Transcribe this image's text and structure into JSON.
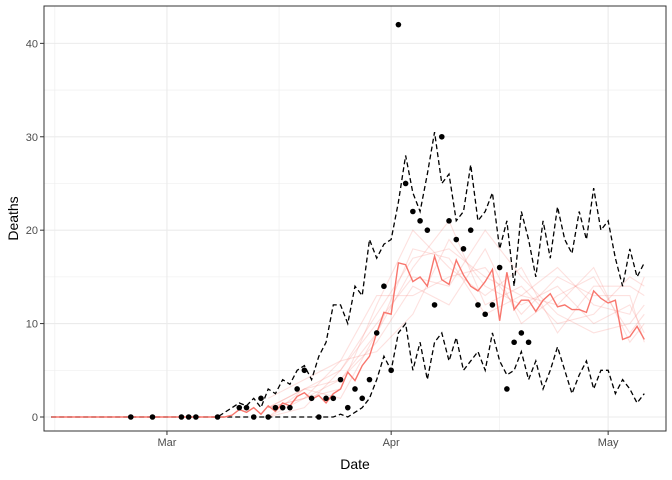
{
  "chart_data": {
    "type": "line",
    "title": "",
    "xlabel": "Date",
    "ylabel": "Deaths",
    "x_axis": {
      "type": "date",
      "range": [
        "2020-02-13",
        "2020-05-09"
      ],
      "tick_dates": [
        "2020-03-01",
        "2020-04-01",
        "2020-05-01"
      ],
      "tick_labels": [
        "Mar",
        "Apr",
        "May"
      ]
    },
    "y_axis": {
      "range": [
        -1.5,
        44
      ],
      "ticks": [
        0,
        10,
        20,
        30,
        40
      ],
      "tick_labels": [
        "0",
        "10",
        "20",
        "30",
        "40"
      ]
    },
    "grid": true,
    "legend": "none",
    "colors": {
      "observed_points": "#000000",
      "median_line": "#f8766d",
      "simulation_lines": "#f8766d",
      "interval_lines": "#000000",
      "grid": "#ebebeb",
      "panel_border": "#333333"
    },
    "observed": {
      "x": [
        "2020-02-25",
        "2020-02-28",
        "2020-03-03",
        "2020-03-04",
        "2020-03-05",
        "2020-03-08",
        "2020-03-11",
        "2020-03-12",
        "2020-03-13",
        "2020-03-14",
        "2020-03-15",
        "2020-03-16",
        "2020-03-17",
        "2020-03-18",
        "2020-03-19",
        "2020-03-20",
        "2020-03-21",
        "2020-03-22",
        "2020-03-23",
        "2020-03-24",
        "2020-03-25",
        "2020-03-26",
        "2020-03-27",
        "2020-03-28",
        "2020-03-29",
        "2020-03-30",
        "2020-03-31",
        "2020-04-01",
        "2020-04-02",
        "2020-04-03",
        "2020-04-04",
        "2020-04-05",
        "2020-04-06",
        "2020-04-07",
        "2020-04-08",
        "2020-04-09",
        "2020-04-10",
        "2020-04-11",
        "2020-04-12",
        "2020-04-13",
        "2020-04-14",
        "2020-04-15",
        "2020-04-16",
        "2020-04-17",
        "2020-04-18",
        "2020-04-19",
        "2020-04-20",
        "2020-04-21",
        "2020-04-22"
      ],
      "y": [
        0,
        0,
        0,
        0,
        0,
        0,
        1,
        1,
        0,
        2,
        0,
        1,
        1,
        1,
        3,
        5,
        2,
        0,
        2,
        2,
        4,
        1,
        3,
        2,
        4,
        9,
        14,
        5,
        42,
        25,
        22,
        21,
        20,
        12,
        30,
        21,
        19,
        18,
        20,
        12,
        11,
        12,
        16,
        3,
        8,
        9,
        8,
        null,
        null
      ]
    },
    "median": {
      "x": [
        "2020-02-14",
        "2020-02-20",
        "2020-02-26",
        "2020-03-02",
        "2020-03-06",
        "2020-03-09",
        "2020-03-10",
        "2020-03-11",
        "2020-03-12",
        "2020-03-13",
        "2020-03-14",
        "2020-03-15",
        "2020-03-16",
        "2020-03-17",
        "2020-03-18",
        "2020-03-19",
        "2020-03-20",
        "2020-03-21",
        "2020-03-22",
        "2020-03-23",
        "2020-03-24",
        "2020-03-25",
        "2020-03-26",
        "2020-03-27",
        "2020-03-28",
        "2020-03-29",
        "2020-03-30",
        "2020-03-31",
        "2020-04-01",
        "2020-04-02",
        "2020-04-03",
        "2020-04-04",
        "2020-04-05",
        "2020-04-06",
        "2020-04-07",
        "2020-04-08",
        "2020-04-09",
        "2020-04-10",
        "2020-04-11",
        "2020-04-12",
        "2020-04-13",
        "2020-04-14",
        "2020-04-15",
        "2020-04-16",
        "2020-04-17",
        "2020-04-18",
        "2020-04-19",
        "2020-04-20",
        "2020-04-21",
        "2020-04-22",
        "2020-04-23",
        "2020-04-24",
        "2020-04-25",
        "2020-04-26",
        "2020-04-27",
        "2020-04-28",
        "2020-04-29",
        "2020-04-30",
        "2020-05-01",
        "2020-05-02",
        "2020-05-03",
        "2020-05-04",
        "2020-05-05",
        "2020-05-06"
      ],
      "y": [
        0,
        0,
        0,
        0,
        0,
        0,
        0.2,
        0.8,
        0.5,
        1.0,
        0.3,
        1.2,
        0.6,
        1.5,
        1.2,
        2.2,
        2.6,
        1.9,
        2.3,
        1.5,
        2.5,
        3.0,
        4.8,
        3.9,
        5.5,
        6.5,
        9.0,
        11.2,
        11.0,
        16.5,
        16.3,
        14.5,
        15.0,
        14.0,
        17.2,
        14.7,
        14.2,
        16.8,
        15.2,
        14.0,
        13.5,
        14.5,
        15.8,
        10.3,
        15.5,
        11.5,
        12.5,
        12.5,
        11.3,
        12.5,
        13.2,
        11.8,
        12.0,
        11.5,
        11.5,
        11.2,
        13.5,
        12.7,
        12.2,
        12.5,
        8.3,
        8.6,
        9.7,
        8.3
      ]
    },
    "upper_interval": {
      "x": [
        "2020-02-14",
        "2020-03-07",
        "2020-03-08",
        "2020-03-09",
        "2020-03-10",
        "2020-03-11",
        "2020-03-12",
        "2020-03-13",
        "2020-03-14",
        "2020-03-15",
        "2020-03-16",
        "2020-03-17",
        "2020-03-18",
        "2020-03-19",
        "2020-03-20",
        "2020-03-21",
        "2020-03-22",
        "2020-03-23",
        "2020-03-24",
        "2020-03-25",
        "2020-03-26",
        "2020-03-27",
        "2020-03-28",
        "2020-03-29",
        "2020-03-30",
        "2020-03-31",
        "2020-04-01",
        "2020-04-02",
        "2020-04-03",
        "2020-04-04",
        "2020-04-05",
        "2020-04-06",
        "2020-04-07",
        "2020-04-08",
        "2020-04-09",
        "2020-04-10",
        "2020-04-11",
        "2020-04-12",
        "2020-04-13",
        "2020-04-14",
        "2020-04-15",
        "2020-04-16",
        "2020-04-17",
        "2020-04-18",
        "2020-04-19",
        "2020-04-20",
        "2020-04-21",
        "2020-04-22",
        "2020-04-23",
        "2020-04-24",
        "2020-04-25",
        "2020-04-26",
        "2020-04-27",
        "2020-04-28",
        "2020-04-29",
        "2020-04-30",
        "2020-05-01",
        "2020-05-02",
        "2020-05-03",
        "2020-05-04",
        "2020-05-05",
        "2020-05-06"
      ],
      "y": [
        0,
        0,
        0,
        0.5,
        1.0,
        1.5,
        1.2,
        2.0,
        1.0,
        3.0,
        2.5,
        4.0,
        3.5,
        5.0,
        5.5,
        4.0,
        6.5,
        8.0,
        12.0,
        12.0,
        10.0,
        14.0,
        13.0,
        19.0,
        17.0,
        18.5,
        19.0,
        23.0,
        28.0,
        24.0,
        22.0,
        26.0,
        30.5,
        25.0,
        26.0,
        21.0,
        22.0,
        27.0,
        21.0,
        22.0,
        24.0,
        18.0,
        21.0,
        14.0,
        22.0,
        19.0,
        15.0,
        21.0,
        17.0,
        22.5,
        19.0,
        17.5,
        22.0,
        19.0,
        24.5,
        20.0,
        21.0,
        17.0,
        14.0,
        18.0,
        15.0,
        16.5
      ]
    },
    "lower_interval": {
      "x": [
        "2020-02-14",
        "2020-03-20",
        "2020-03-21",
        "2020-03-22",
        "2020-03-23",
        "2020-03-24",
        "2020-03-25",
        "2020-03-26",
        "2020-03-27",
        "2020-03-28",
        "2020-03-29",
        "2020-03-30",
        "2020-03-31",
        "2020-04-01",
        "2020-04-02",
        "2020-04-03",
        "2020-04-04",
        "2020-04-05",
        "2020-04-06",
        "2020-04-07",
        "2020-04-08",
        "2020-04-09",
        "2020-04-10",
        "2020-04-11",
        "2020-04-12",
        "2020-04-13",
        "2020-04-14",
        "2020-04-15",
        "2020-04-16",
        "2020-04-17",
        "2020-04-18",
        "2020-04-19",
        "2020-04-20",
        "2020-04-21",
        "2020-04-22",
        "2020-04-23",
        "2020-04-24",
        "2020-04-25",
        "2020-04-26",
        "2020-04-27",
        "2020-04-28",
        "2020-04-29",
        "2020-04-30",
        "2020-05-01",
        "2020-05-02",
        "2020-05-03",
        "2020-05-04",
        "2020-05-05",
        "2020-05-06"
      ],
      "y": [
        0,
        0,
        0,
        0,
        0,
        0,
        0.3,
        0,
        0.5,
        1.0,
        2.0,
        4.0,
        6.5,
        5.0,
        9.0,
        10.0,
        5.0,
        8.0,
        4.0,
        8.0,
        9.0,
        6.0,
        8.5,
        5.0,
        6.0,
        7.0,
        5.0,
        9.0,
        6.0,
        4.5,
        5.0,
        7.0,
        4.0,
        6.0,
        3.0,
        5.0,
        7.5,
        5.0,
        2.5,
        4.5,
        6.0,
        3.0,
        5.0,
        5.0,
        2.5,
        4.0,
        3.0,
        1.5,
        2.5
      ]
    },
    "simulations": [
      {
        "x": [
          "2020-03-15",
          "2020-03-20",
          "2020-03-25",
          "2020-03-30",
          "2020-04-04",
          "2020-04-09",
          "2020-04-14",
          "2020-04-19",
          "2020-04-24",
          "2020-04-29",
          "2020-05-04",
          "2020-05-06"
        ],
        "y": [
          1,
          3,
          5,
          11,
          17,
          18,
          15,
          13,
          16,
          12,
          11,
          15
        ]
      },
      {
        "x": [
          "2020-03-15",
          "2020-03-20",
          "2020-03-25",
          "2020-03-30",
          "2020-04-04",
          "2020-04-09",
          "2020-04-14",
          "2020-04-19",
          "2020-04-24",
          "2020-04-29",
          "2020-05-04",
          "2020-05-06"
        ],
        "y": [
          0,
          2,
          4,
          8,
          14,
          12,
          18,
          10,
          13,
          15,
          9,
          11
        ]
      },
      {
        "x": [
          "2020-03-15",
          "2020-03-20",
          "2020-03-25",
          "2020-03-30",
          "2020-04-04",
          "2020-04-09",
          "2020-04-14",
          "2020-04-19",
          "2020-04-24",
          "2020-04-29",
          "2020-05-04",
          "2020-05-06"
        ],
        "y": [
          1,
          2,
          3,
          12,
          20,
          16,
          13,
          16,
          9,
          14,
          14,
          13
        ]
      },
      {
        "x": [
          "2020-03-15",
          "2020-03-20",
          "2020-03-25",
          "2020-03-30",
          "2020-04-04",
          "2020-04-09",
          "2020-04-14",
          "2020-04-19",
          "2020-04-24",
          "2020-04-29",
          "2020-05-04",
          "2020-05-06"
        ],
        "y": [
          2,
          4,
          6,
          7,
          11,
          19,
          14,
          12,
          14,
          10,
          12,
          9
        ]
      },
      {
        "x": [
          "2020-03-15",
          "2020-03-20",
          "2020-03-25",
          "2020-03-30",
          "2020-04-04",
          "2020-04-09",
          "2020-04-14",
          "2020-04-19",
          "2020-04-24",
          "2020-04-29",
          "2020-05-04",
          "2020-05-06"
        ],
        "y": [
          0,
          1,
          5,
          10,
          15,
          14,
          20,
          15,
          11,
          9,
          10,
          12
        ]
      },
      {
        "x": [
          "2020-03-15",
          "2020-03-20",
          "2020-03-25",
          "2020-03-30",
          "2020-04-04",
          "2020-04-09",
          "2020-04-14",
          "2020-04-19",
          "2020-04-24",
          "2020-04-29",
          "2020-05-04",
          "2020-05-06"
        ],
        "y": [
          1,
          3,
          2,
          9,
          18,
          17,
          11,
          13,
          12,
          16,
          8,
          10
        ]
      },
      {
        "x": [
          "2020-03-15",
          "2020-03-20",
          "2020-03-25",
          "2020-03-30",
          "2020-04-04",
          "2020-04-09",
          "2020-04-14",
          "2020-04-19",
          "2020-04-24",
          "2020-04-29",
          "2020-05-04",
          "2020-05-06"
        ],
        "y": [
          1,
          2,
          6,
          13,
          13,
          15,
          16,
          11,
          15,
          13,
          13,
          8
        ]
      },
      {
        "x": [
          "2020-03-15",
          "2020-03-20",
          "2020-03-25",
          "2020-03-30",
          "2020-04-04",
          "2020-04-09",
          "2020-04-14",
          "2020-04-19",
          "2020-04-24",
          "2020-04-29",
          "2020-05-04",
          "2020-05-06"
        ],
        "y": [
          0,
          3,
          4,
          9,
          16,
          21,
          12,
          14,
          10,
          11,
          15,
          14
        ]
      }
    ]
  }
}
